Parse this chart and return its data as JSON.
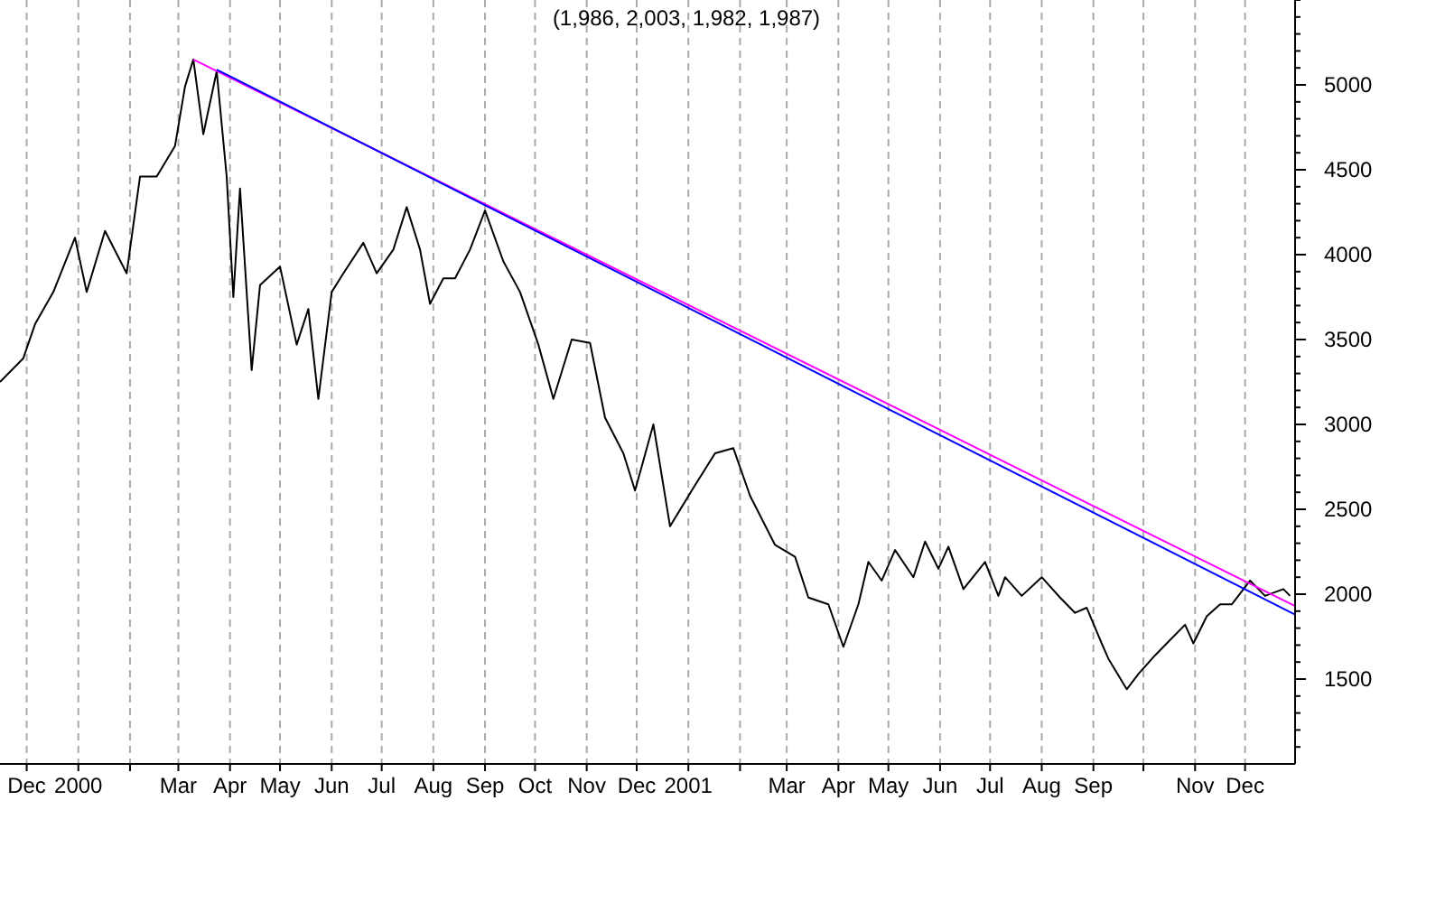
{
  "chart_data": {
    "type": "line",
    "title": "(1,986, 2,003, 1,982, 1,987)",
    "xlim": [
      "1999-11-15",
      "2001-12-31"
    ],
    "xticks": [
      {
        "value": "1999-12-01",
        "label": "Dec"
      },
      {
        "value": "2000-01-01",
        "label": "2000"
      },
      {
        "value": "2000-02-01",
        "label": null
      },
      {
        "value": "2000-03-01",
        "label": "Mar"
      },
      {
        "value": "2000-04-01",
        "label": "Apr"
      },
      {
        "value": "2000-05-01",
        "label": "May"
      },
      {
        "value": "2000-06-01",
        "label": "Jun"
      },
      {
        "value": "2000-07-01",
        "label": "Jul"
      },
      {
        "value": "2000-08-01",
        "label": "Aug"
      },
      {
        "value": "2000-09-01",
        "label": "Sep"
      },
      {
        "value": "2000-10-01",
        "label": "Oct"
      },
      {
        "value": "2000-11-01",
        "label": "Nov"
      },
      {
        "value": "2000-12-01",
        "label": "Dec"
      },
      {
        "value": "2001-01-01",
        "label": "2001"
      },
      {
        "value": "2001-02-01",
        "label": null
      },
      {
        "value": "2001-03-01",
        "label": "Mar"
      },
      {
        "value": "2001-04-01",
        "label": "Apr"
      },
      {
        "value": "2001-05-01",
        "label": "May"
      },
      {
        "value": "2001-06-01",
        "label": "Jun"
      },
      {
        "value": "2001-07-01",
        "label": "Jul"
      },
      {
        "value": "2001-08-01",
        "label": "Aug"
      },
      {
        "value": "2001-09-01",
        "label": "Sep"
      },
      {
        "value": "2001-10-01",
        "label": null
      },
      {
        "value": "2001-11-01",
        "label": "Nov"
      },
      {
        "value": "2001-12-01",
        "label": "Dec"
      }
    ],
    "ylim": [
      1000,
      5500
    ],
    "yticks": [
      {
        "value": 1100,
        "label": null
      },
      {
        "value": 1200,
        "label": null
      },
      {
        "value": 1300,
        "label": null
      },
      {
        "value": 1400,
        "label": null
      },
      1500,
      {
        "value": 1600,
        "label": null
      },
      {
        "value": 1700,
        "label": null
      },
      {
        "value": 1800,
        "label": null
      },
      {
        "value": 1900,
        "label": null
      },
      2000,
      {
        "value": 2100,
        "label": null
      },
      {
        "value": 2200,
        "label": null
      },
      {
        "value": 2300,
        "label": null
      },
      {
        "value": 2400,
        "label": null
      },
      2500,
      {
        "value": 2600,
        "label": null
      },
      {
        "value": 2700,
        "label": null
      },
      {
        "value": 2800,
        "label": null
      },
      {
        "value": 2900,
        "label": null
      },
      3000,
      {
        "value": 3100,
        "label": null
      },
      {
        "value": 3200,
        "label": null
      },
      {
        "value": 3300,
        "label": null
      },
      {
        "value": 3400,
        "label": null
      },
      3500,
      {
        "value": 3600,
        "label": null
      },
      {
        "value": 3700,
        "label": null
      },
      {
        "value": 3800,
        "label": null
      },
      {
        "value": 3900,
        "label": null
      },
      4000,
      {
        "value": 4100,
        "label": null
      },
      {
        "value": 4200,
        "label": null
      },
      {
        "value": 4300,
        "label": null
      },
      {
        "value": 4400,
        "label": null
      },
      4500,
      {
        "value": 4600,
        "label": null
      },
      {
        "value": 4700,
        "label": null
      },
      {
        "value": 4800,
        "label": null
      },
      {
        "value": 4900,
        "label": null
      },
      5000,
      {
        "value": 5100,
        "label": null
      },
      {
        "value": 5200,
        "label": null
      },
      {
        "value": 5300,
        "label": null
      },
      {
        "value": 5400,
        "label": null
      },
      {
        "value": 5500,
        "label": null
      }
    ],
    "grid": "x",
    "marker": "none",
    "line_style": "solid",
    "series": [
      {
        "color": "#000000",
        "x": [
          "1999-11-15",
          "1999-11-29",
          "1999-12-06",
          "1999-12-17",
          "1999-12-30",
          "2000-01-06",
          "2000-01-17",
          "2000-01-30",
          "2000-02-07",
          "2000-02-17",
          "2000-02-28",
          "2000-03-05",
          "2000-03-10",
          "2000-03-16",
          "2000-03-24",
          "2000-03-30",
          "2000-04-03",
          "2000-04-07",
          "2000-04-14",
          "2000-04-19",
          "2000-05-01",
          "2000-05-11",
          "2000-05-18",
          "2000-05-24",
          "2000-06-01",
          "2000-06-08",
          "2000-06-20",
          "2000-06-28",
          "2000-07-08",
          "2000-07-16",
          "2000-07-24",
          "2000-07-30",
          "2000-08-07",
          "2000-08-14",
          "2000-08-23",
          "2000-09-01",
          "2000-09-12",
          "2000-09-22",
          "2000-10-03",
          "2000-10-12",
          "2000-10-23",
          "2000-11-03",
          "2000-11-12",
          "2000-11-23",
          "2000-11-30",
          "2000-12-11",
          "2000-12-21",
          "2001-01-03",
          "2001-01-17",
          "2001-01-28",
          "2001-02-07",
          "2001-02-22",
          "2001-03-06",
          "2001-03-14",
          "2001-03-26",
          "2001-04-04",
          "2001-04-13",
          "2001-04-19",
          "2001-04-27",
          "2001-05-05",
          "2001-05-16",
          "2001-05-23",
          "2001-05-31",
          "2001-06-06",
          "2001-06-15",
          "2001-06-28",
          "2001-07-06",
          "2001-07-10",
          "2001-07-20",
          "2001-08-01",
          "2001-08-12",
          "2001-08-21",
          "2001-08-28",
          "2001-09-06",
          "2001-09-10",
          "2001-09-21",
          "2001-09-28",
          "2001-10-08",
          "2001-10-17",
          "2001-10-26",
          "2001-10-31",
          "2001-11-08",
          "2001-11-16",
          "2001-11-23",
          "2001-12-04",
          "2001-12-13",
          "2001-12-24",
          "2001-12-28"
        ],
        "values": [
          3250,
          3390,
          3590,
          3780,
          4100,
          3780,
          4140,
          3890,
          4460,
          4460,
          4640,
          4990,
          5150,
          4710,
          5080,
          4460,
          3750,
          4390,
          3320,
          3820,
          3930,
          3470,
          3680,
          3150,
          3780,
          3890,
          4070,
          3890,
          4030,
          4280,
          4030,
          3710,
          3860,
          3860,
          4030,
          4260,
          3960,
          3780,
          3470,
          3150,
          3500,
          3480,
          3040,
          2830,
          2610,
          3000,
          2400,
          2610,
          2830,
          2860,
          2580,
          2290,
          2220,
          1980,
          1940,
          1690,
          1940,
          2190,
          2080,
          2260,
          2100,
          2310,
          2150,
          2280,
          2030,
          2190,
          1990,
          2100,
          1990,
          2100,
          1980,
          1890,
          1920,
          1710,
          1620,
          1440,
          1530,
          1640,
          1730,
          1820,
          1710,
          1870,
          1940,
          1940,
          2080,
          1990,
          2030,
          1990
        ]
      },
      {
        "color": "#ff00ff",
        "x": [
          "2000-03-10",
          "2001-12-31"
        ],
        "values": [
          5150,
          1930
        ]
      },
      {
        "color": "#0000ff",
        "x": [
          "2000-03-24",
          "2001-12-31"
        ],
        "values": [
          5090,
          1880
        ]
      }
    ]
  }
}
